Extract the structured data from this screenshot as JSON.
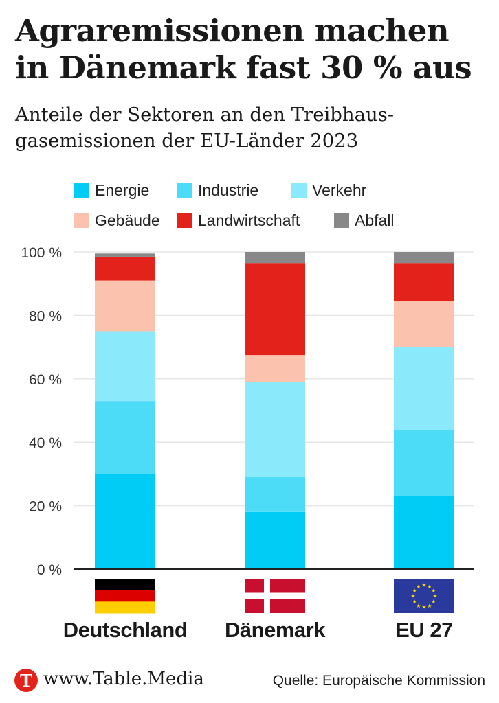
{
  "title": "Agraremissionen machen in Dänemark fast 30 % aus",
  "subtitle": "Anteile der Sektoren an den Treibhaus-gasemissionen der EU-Länder 2023",
  "legend": [
    {
      "label": "Energie",
      "color": "#00ccf5"
    },
    {
      "label": "Industrie",
      "color": "#4ddcf8"
    },
    {
      "label": "Verkehr",
      "color": "#8ae9fb"
    },
    {
      "label": "Gebäude",
      "color": "#fbc3ad"
    },
    {
      "label": "Landwirtschaft",
      "color": "#e3231b"
    },
    {
      "label": "Abfall",
      "color": "#888888"
    }
  ],
  "chart_data": {
    "type": "bar",
    "stacked": true,
    "categories": [
      "Deutschland",
      "Dänemark",
      "EU 27"
    ],
    "series": [
      {
        "name": "Energie",
        "values": [
          30,
          18,
          23
        ]
      },
      {
        "name": "Industrie",
        "values": [
          23,
          11,
          21
        ]
      },
      {
        "name": "Verkehr",
        "values": [
          22,
          30,
          26
        ]
      },
      {
        "name": "Gebäude",
        "values": [
          16,
          8.5,
          14.5
        ]
      },
      {
        "name": "Landwirtschaft",
        "values": [
          7.5,
          29,
          12
        ]
      },
      {
        "name": "Abfall",
        "values": [
          1,
          3.5,
          3.5
        ]
      }
    ],
    "ylim": [
      0,
      100
    ],
    "yticks": [
      0,
      20,
      40,
      60,
      80,
      100
    ],
    "ytick_labels": [
      "0 %",
      "20 %",
      "40 %",
      "60 %",
      "80 %",
      "100 %"
    ],
    "grid": true,
    "legend_position": "top"
  },
  "flags": [
    "germany-flag",
    "denmark-flag",
    "eu-flag"
  ],
  "footer": {
    "logo_letter": "T",
    "url": "www.Table.Media",
    "source": "Quelle: Europäische Kommission"
  }
}
